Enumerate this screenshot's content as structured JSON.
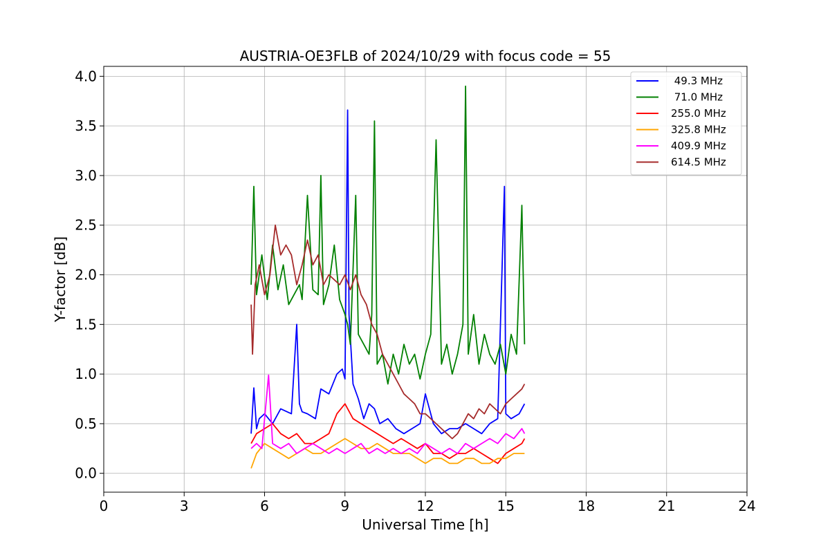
{
  "chart_data": {
    "type": "line",
    "title": "AUSTRIA-OE3FLB of 2024/10/29 with focus code = 55",
    "xlabel": "Universal Time [h]",
    "ylabel": "Y-factor [dB]",
    "xlim": [
      0,
      24
    ],
    "ylim": [
      -0.19,
      4.1
    ],
    "xticks": [
      0,
      3,
      6,
      9,
      12,
      15,
      18,
      21,
      24
    ],
    "yticks": [
      0.0,
      0.5,
      1.0,
      1.5,
      2.0,
      2.5,
      3.0,
      3.5,
      4.0
    ],
    "ytick_labels": [
      "0.0",
      "0.5",
      "1.0",
      "1.5",
      "2.0",
      "2.5",
      "3.0",
      "3.5",
      "4.0"
    ],
    "grid": true,
    "legend_position": "top-right",
    "series": [
      {
        "name": " 49.3 MHz",
        "color": "#0000ff",
        "x": [
          5.5,
          5.6,
          5.7,
          5.8,
          6.0,
          6.3,
          6.6,
          7.0,
          7.2,
          7.3,
          7.4,
          7.6,
          7.9,
          8.1,
          8.4,
          8.7,
          8.9,
          9.0,
          9.1,
          9.15,
          9.3,
          9.5,
          9.7,
          9.9,
          10.1,
          10.3,
          10.6,
          10.9,
          11.2,
          11.5,
          11.8,
          12.0,
          12.3,
          12.6,
          12.9,
          13.2,
          13.5,
          13.8,
          14.1,
          14.4,
          14.7,
          14.95,
          15.0,
          15.2,
          15.5,
          15.7
        ],
        "y": [
          0.4,
          0.86,
          0.45,
          0.55,
          0.6,
          0.5,
          0.65,
          0.6,
          1.5,
          0.7,
          0.62,
          0.6,
          0.55,
          0.85,
          0.8,
          1.0,
          1.05,
          0.95,
          3.66,
          1.6,
          0.9,
          0.75,
          0.55,
          0.7,
          0.65,
          0.5,
          0.55,
          0.45,
          0.4,
          0.45,
          0.5,
          0.8,
          0.5,
          0.4,
          0.45,
          0.45,
          0.5,
          0.45,
          0.4,
          0.5,
          0.55,
          2.89,
          0.6,
          0.55,
          0.6,
          0.7
        ]
      },
      {
        "name": " 71.0 MHz",
        "color": "#008000",
        "x": [
          5.5,
          5.6,
          5.7,
          5.9,
          6.1,
          6.3,
          6.5,
          6.7,
          6.9,
          7.1,
          7.3,
          7.4,
          7.6,
          7.8,
          8.0,
          8.1,
          8.2,
          8.4,
          8.6,
          8.8,
          9.0,
          9.1,
          9.2,
          9.4,
          9.5,
          9.7,
          9.9,
          10.0,
          10.1,
          10.2,
          10.4,
          10.6,
          10.8,
          11.0,
          11.2,
          11.4,
          11.6,
          11.8,
          12.0,
          12.2,
          12.4,
          12.6,
          12.8,
          13.0,
          13.2,
          13.4,
          13.5,
          13.6,
          13.8,
          14.0,
          14.2,
          14.4,
          14.6,
          14.8,
          15.0,
          15.2,
          15.4,
          15.6,
          15.7
        ],
        "y": [
          1.9,
          2.89,
          1.8,
          2.2,
          1.75,
          2.3,
          1.85,
          2.1,
          1.7,
          1.8,
          1.9,
          1.75,
          2.8,
          1.85,
          1.8,
          3.0,
          1.7,
          1.9,
          2.3,
          1.75,
          1.6,
          1.5,
          1.3,
          2.8,
          1.4,
          1.3,
          1.2,
          1.6,
          3.55,
          1.1,
          1.2,
          0.9,
          1.2,
          1.0,
          1.3,
          1.1,
          1.2,
          0.95,
          1.2,
          1.4,
          3.36,
          1.1,
          1.3,
          1.0,
          1.2,
          1.5,
          3.9,
          1.2,
          1.6,
          1.1,
          1.4,
          1.2,
          1.1,
          1.3,
          1.0,
          1.4,
          1.2,
          2.7,
          1.3
        ]
      },
      {
        "name": "255.0 MHz",
        "color": "#ff0000",
        "x": [
          5.5,
          5.7,
          6.0,
          6.3,
          6.6,
          6.9,
          7.2,
          7.5,
          7.8,
          8.1,
          8.4,
          8.7,
          9.0,
          9.3,
          9.6,
          9.9,
          10.2,
          10.5,
          10.8,
          11.1,
          11.4,
          11.7,
          12.0,
          12.3,
          12.6,
          12.9,
          13.2,
          13.5,
          13.8,
          14.1,
          14.4,
          14.7,
          15.0,
          15.3,
          15.6,
          15.7
        ],
        "y": [
          0.3,
          0.4,
          0.45,
          0.5,
          0.4,
          0.35,
          0.4,
          0.3,
          0.3,
          0.35,
          0.4,
          0.6,
          0.7,
          0.55,
          0.5,
          0.45,
          0.4,
          0.35,
          0.3,
          0.35,
          0.3,
          0.25,
          0.3,
          0.2,
          0.2,
          0.15,
          0.2,
          0.2,
          0.25,
          0.2,
          0.15,
          0.1,
          0.2,
          0.25,
          0.3,
          0.35
        ]
      },
      {
        "name": "325.8 MHz",
        "color": "#ffa500",
        "x": [
          5.5,
          5.7,
          6.0,
          6.3,
          6.6,
          6.9,
          7.2,
          7.5,
          7.8,
          8.1,
          8.4,
          8.7,
          9.0,
          9.3,
          9.6,
          9.9,
          10.2,
          10.5,
          10.8,
          11.1,
          11.4,
          11.7,
          12.0,
          12.3,
          12.6,
          12.9,
          13.2,
          13.5,
          13.8,
          14.1,
          14.4,
          14.7,
          15.0,
          15.3,
          15.6,
          15.7
        ],
        "y": [
          0.05,
          0.2,
          0.3,
          0.25,
          0.2,
          0.15,
          0.2,
          0.25,
          0.2,
          0.2,
          0.25,
          0.3,
          0.35,
          0.3,
          0.25,
          0.25,
          0.3,
          0.25,
          0.2,
          0.2,
          0.2,
          0.15,
          0.1,
          0.15,
          0.15,
          0.1,
          0.1,
          0.15,
          0.15,
          0.1,
          0.1,
          0.15,
          0.15,
          0.2,
          0.2,
          0.2
        ]
      },
      {
        "name": "409.9 MHz",
        "color": "#ff00ff",
        "x": [
          5.5,
          5.7,
          5.9,
          6.15,
          6.3,
          6.6,
          6.9,
          7.2,
          7.5,
          7.8,
          8.1,
          8.4,
          8.7,
          9.0,
          9.3,
          9.6,
          9.9,
          10.2,
          10.5,
          10.8,
          11.1,
          11.4,
          11.7,
          12.0,
          12.3,
          12.6,
          12.9,
          13.2,
          13.5,
          13.8,
          14.1,
          14.4,
          14.7,
          15.0,
          15.3,
          15.6,
          15.7
        ],
        "y": [
          0.25,
          0.3,
          0.25,
          0.99,
          0.3,
          0.25,
          0.3,
          0.2,
          0.25,
          0.3,
          0.25,
          0.2,
          0.25,
          0.2,
          0.25,
          0.3,
          0.2,
          0.25,
          0.2,
          0.25,
          0.2,
          0.25,
          0.2,
          0.3,
          0.25,
          0.2,
          0.25,
          0.2,
          0.3,
          0.25,
          0.3,
          0.35,
          0.3,
          0.4,
          0.35,
          0.45,
          0.4
        ]
      },
      {
        "name": "614.5 MHz",
        "color": "#a52a2a",
        "x": [
          5.5,
          5.55,
          5.65,
          5.8,
          6.0,
          6.2,
          6.4,
          6.6,
          6.8,
          7.0,
          7.2,
          7.4,
          7.6,
          7.8,
          8.0,
          8.2,
          8.4,
          8.6,
          8.8,
          9.0,
          9.2,
          9.4,
          9.6,
          9.8,
          10.0,
          10.2,
          10.4,
          10.6,
          10.8,
          11.0,
          11.2,
          11.4,
          11.6,
          11.8,
          12.0,
          12.2,
          12.4,
          12.6,
          12.8,
          13.0,
          13.2,
          13.4,
          13.6,
          13.8,
          14.0,
          14.2,
          14.4,
          14.6,
          14.8,
          15.0,
          15.2,
          15.4,
          15.6,
          15.7
        ],
        "y": [
          1.7,
          1.2,
          1.9,
          2.1,
          1.8,
          2.0,
          2.5,
          2.2,
          2.3,
          2.2,
          1.9,
          2.1,
          2.35,
          2.1,
          2.2,
          1.9,
          2.0,
          1.95,
          1.9,
          2.0,
          1.85,
          2.0,
          1.8,
          1.7,
          1.5,
          1.4,
          1.2,
          1.1,
          1.0,
          0.9,
          0.8,
          0.75,
          0.7,
          0.6,
          0.6,
          0.55,
          0.5,
          0.45,
          0.4,
          0.35,
          0.4,
          0.5,
          0.6,
          0.55,
          0.65,
          0.6,
          0.7,
          0.65,
          0.6,
          0.7,
          0.75,
          0.8,
          0.85,
          0.9
        ]
      }
    ]
  }
}
